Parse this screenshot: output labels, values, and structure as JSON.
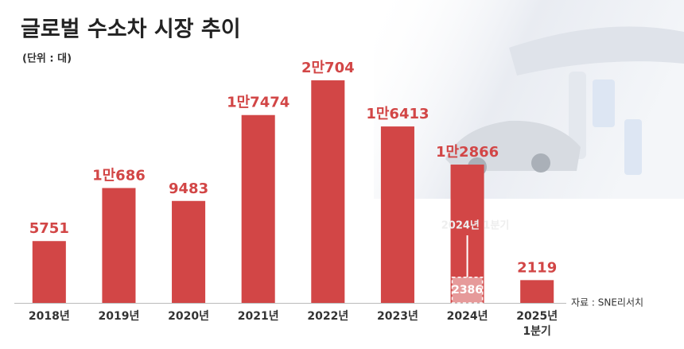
{
  "chart_data": {
    "type": "bar",
    "title": "글로벌 수소차 시장 추이",
    "subtitle": "(단위 : 대)",
    "source": "자료 : SNE리서치",
    "categories": [
      "2018년",
      "2019년",
      "2020년",
      "2021년",
      "2022년",
      "2023년",
      "2024년",
      "2025년\n1분기"
    ],
    "values": [
      5751,
      10686,
      9483,
      17474,
      20704,
      16413,
      12866,
      2119
    ],
    "value_labels": [
      "5751",
      "1만686",
      "9483",
      "1만7474",
      "2만704",
      "1만6413",
      "1만2866",
      "2119"
    ],
    "color": "#d24646",
    "ylim": [
      0,
      23000
    ],
    "annotation": {
      "category_index": 6,
      "label": "2024년 1분기",
      "value": 2386,
      "color": "#e69a9a"
    }
  }
}
